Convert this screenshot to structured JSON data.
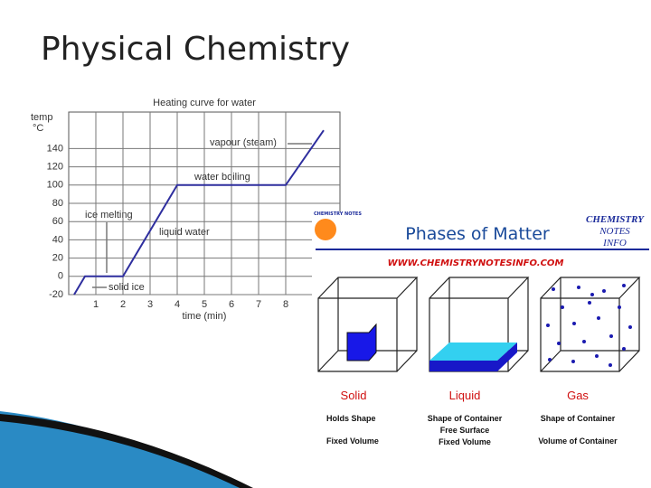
{
  "slide": {
    "title": "Physical Chemistry"
  },
  "chart_data": {
    "type": "line",
    "title": "Heating curve for water",
    "y_label": [
      "temp",
      "°C"
    ],
    "x_label": "time (min)",
    "x": [
      0.2,
      0.6,
      2,
      4,
      8,
      9.4
    ],
    "series": [
      {
        "name": "water",
        "color": "#2e2e9e",
        "values": [
          -20,
          0,
          0,
          100,
          100,
          160
        ]
      }
    ],
    "xlim": [
      0,
      10
    ],
    "xticks": [
      1,
      2,
      3,
      4,
      5,
      6,
      7,
      8
    ],
    "ylim": [
      -20,
      180
    ],
    "yticks": [
      -20,
      0,
      20,
      40,
      60,
      80,
      100,
      120,
      140
    ],
    "grid": true,
    "annotations": [
      "vapour (steam)",
      "water boiling",
      "ice melting",
      "liquid water",
      "solid ice"
    ]
  },
  "phases": {
    "title": "Phases of Matter",
    "brand": [
      "CHEMISTRY",
      "NOTES",
      "INFO"
    ],
    "logo": "CHEMISTRY NOTES",
    "url": "WWW.CHEMISTRYNOTESINFO.COM",
    "states": [
      {
        "name": "Solid",
        "lines": [
          "Holds Shape",
          "Fixed Volume"
        ]
      },
      {
        "name": "Liquid",
        "lines": [
          "Shape of Container",
          "Free Surface",
          "Fixed Volume"
        ]
      },
      {
        "name": "Gas",
        "lines": [
          "Shape of Container",
          "Volume of Container"
        ]
      }
    ]
  }
}
